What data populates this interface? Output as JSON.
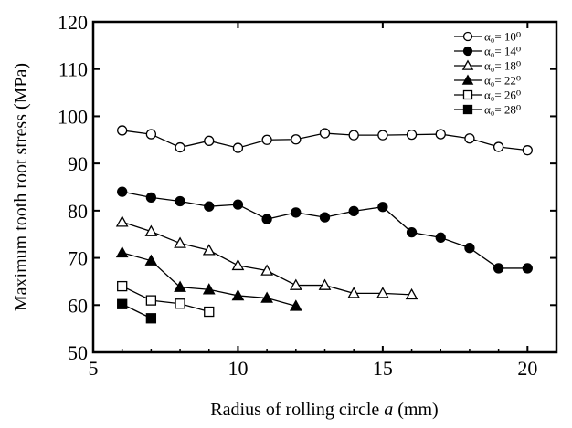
{
  "chart_data": {
    "type": "line",
    "title": "",
    "xlabel_prefix": "Radius of rolling circle ",
    "xlabel_var": "a",
    "xlabel_suffix": " (mm)",
    "ylabel": "Maximum tooth root stress (MPa)",
    "xlim": [
      5,
      21
    ],
    "ylim": [
      50,
      120
    ],
    "xticks": [
      5,
      10,
      15,
      20
    ],
    "yticks": [
      50,
      60,
      70,
      80,
      90,
      100,
      110,
      120
    ],
    "grid": false,
    "legend_position": "top-right",
    "series": [
      {
        "name": "α₀= 10⁰",
        "marker": "circle",
        "filled": false,
        "x": [
          6,
          7,
          8,
          9,
          10,
          11,
          12,
          13,
          14,
          15,
          16,
          17,
          18,
          19,
          20
        ],
        "y": [
          97,
          96.2,
          93.4,
          94.8,
          93.3,
          95,
          95.1,
          96.4,
          96,
          96,
          96.1,
          96.2,
          95.3,
          93.5,
          92.8
        ]
      },
      {
        "name": "α₀= 14⁰",
        "marker": "circle",
        "filled": true,
        "x": [
          6,
          7,
          8,
          9,
          10,
          11,
          12,
          13,
          14,
          15,
          16,
          17,
          18,
          19,
          20
        ],
        "y": [
          84,
          82.8,
          82,
          80.9,
          81.3,
          78.2,
          79.6,
          78.6,
          79.9,
          80.8,
          75.4,
          74.3,
          72.1,
          67.8,
          67.8
        ]
      },
      {
        "name": "α₀= 18⁰",
        "marker": "triangle",
        "filled": false,
        "x": [
          6,
          7,
          8,
          9,
          10,
          11,
          12,
          13,
          14,
          15,
          16
        ],
        "y": [
          77.6,
          75.6,
          73.1,
          71.6,
          68.4,
          67.3,
          64.2,
          64.2,
          62.5,
          62.5,
          62.2
        ]
      },
      {
        "name": "α₀= 22⁰",
        "marker": "triangle",
        "filled": true,
        "x": [
          6,
          7,
          8,
          9,
          10,
          11,
          12
        ],
        "y": [
          71.1,
          69.4,
          63.8,
          63.3,
          62,
          61.5,
          59.8
        ]
      },
      {
        "name": "α₀= 26⁰",
        "marker": "square",
        "filled": false,
        "x": [
          6,
          7,
          8,
          9
        ],
        "y": [
          64,
          61,
          60.3,
          58.6
        ]
      },
      {
        "name": "α₀= 28⁰",
        "marker": "square",
        "filled": true,
        "x": [
          6,
          7
        ],
        "y": [
          60.2,
          57.2
        ]
      }
    ]
  }
}
